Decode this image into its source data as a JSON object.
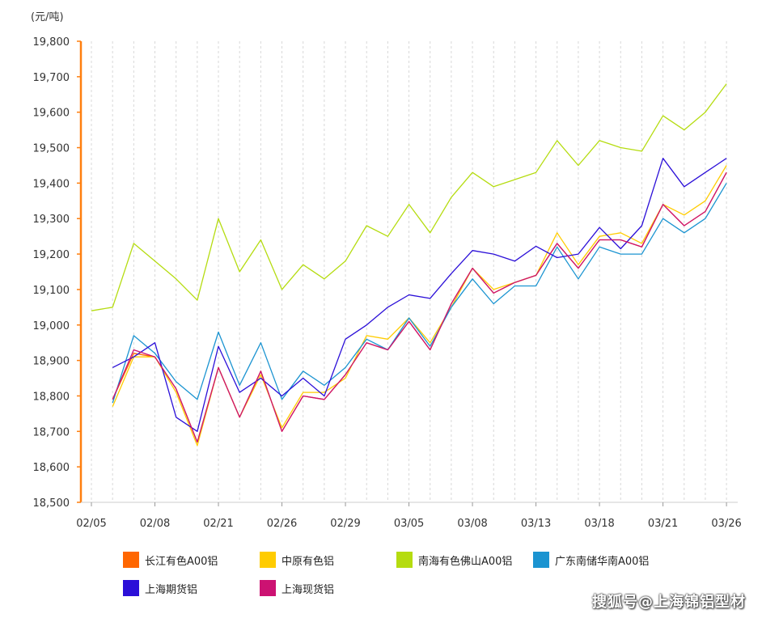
{
  "chart_data": {
    "type": "line",
    "unit_label": "(元/吨)",
    "ylim": [
      18500,
      19800
    ],
    "y_ticks": [
      "18,500",
      "18,600",
      "18,700",
      "18,800",
      "18,900",
      "19,000",
      "19,100",
      "19,200",
      "19,300",
      "19,400",
      "19,500",
      "19,600",
      "19,700",
      "19,800"
    ],
    "x_tick_labels": [
      "02/05",
      "02/08",
      "02/21",
      "02/26",
      "02/29",
      "03/05",
      "03/08",
      "03/13",
      "03/18",
      "03/21",
      "03/26"
    ],
    "x_tick_index": [
      0,
      3,
      6,
      9,
      12,
      15,
      18,
      21,
      24,
      27,
      30
    ],
    "grid": "vertical dashed",
    "series": [
      {
        "name": "长江有色A00铝",
        "color": "#ff6600",
        "values": [
          null,
          18790,
          18920,
          18910,
          18820,
          18670,
          18880,
          18740,
          18870,
          18700,
          18800,
          18790,
          18860,
          18950,
          18930,
          19010,
          18930,
          19060,
          19160,
          19090,
          19120,
          19140,
          19230,
          19160,
          19240,
          19240,
          19220,
          19340,
          19280,
          19320,
          19430
        ]
      },
      {
        "name": "中原有色铝",
        "color": "#ffcc00",
        "values": [
          null,
          18770,
          18910,
          18910,
          18810,
          18660,
          18880,
          18740,
          18860,
          18710,
          18810,
          18810,
          18850,
          18970,
          18960,
          19020,
          18950,
          19050,
          19160,
          19100,
          19120,
          19140,
          19260,
          19170,
          19250,
          19260,
          19230,
          19340,
          19310,
          19350,
          19450
        ]
      },
      {
        "name": "南海有色佛山A00铝",
        "color": "#b5dc10",
        "values": [
          19040,
          19050,
          19230,
          19180,
          19130,
          19070,
          19300,
          19150,
          19240,
          19100,
          19170,
          19130,
          19180,
          19280,
          19250,
          19340,
          19260,
          19360,
          19430,
          19390,
          19410,
          19430,
          19520,
          19450,
          19520,
          19500,
          19490,
          19590,
          19550,
          19600,
          19680
        ]
      },
      {
        "name": "广东南储华南A00铝",
        "color": "#1b94d1",
        "values": [
          null,
          18780,
          18970,
          18920,
          18840,
          18790,
          18980,
          18830,
          18950,
          18790,
          18870,
          18830,
          18880,
          18960,
          18930,
          19020,
          18940,
          19050,
          19130,
          19060,
          19110,
          19110,
          19220,
          19130,
          19220,
          19200,
          19200,
          19300,
          19260,
          19300,
          19400
        ]
      },
      {
        "name": "上海期货铝",
        "color": "#2b0fd8",
        "values": [
          null,
          18880,
          18910,
          18950,
          18740,
          18700,
          18940,
          18810,
          18850,
          18800,
          18850,
          18800,
          18960,
          19000,
          19050,
          19085,
          19075,
          19145,
          19210,
          19200,
          19180,
          19222,
          19190,
          19200,
          19275,
          19215,
          19280,
          19470,
          19390,
          19430,
          19470
        ]
      },
      {
        "name": "上海现货铝",
        "color": "#cc1272",
        "values": [
          null,
          18790,
          18930,
          18910,
          18820,
          18670,
          18880,
          18740,
          18870,
          18700,
          18800,
          18790,
          18860,
          18950,
          18930,
          19010,
          18930,
          19060,
          19160,
          19090,
          19120,
          19140,
          19230,
          19160,
          19240,
          19240,
          19220,
          19340,
          19280,
          19320,
          19430
        ]
      }
    ]
  },
  "watermark": "搜狐号@上海锦铝型材"
}
